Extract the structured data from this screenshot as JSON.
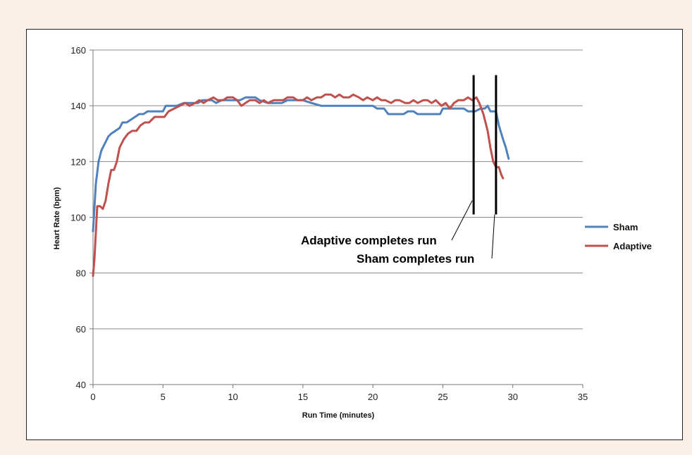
{
  "chart_data": {
    "type": "line",
    "title": "",
    "xlabel": "Run Time (minutes)",
    "ylabel": "Heart Rate (bpm)",
    "xlim": [
      0,
      35
    ],
    "ylim": [
      40,
      160
    ],
    "x_ticks": [
      0,
      5,
      10,
      15,
      20,
      25,
      30,
      35
    ],
    "y_ticks": [
      40,
      60,
      80,
      100,
      120,
      140,
      160
    ],
    "grid": "horizontal",
    "legend_position": "right",
    "series": [
      {
        "name": "Sham",
        "color": "#4f81bd",
        "points": [
          [
            0,
            95
          ],
          [
            0.2,
            112
          ],
          [
            0.4,
            120
          ],
          [
            0.6,
            124
          ],
          [
            0.9,
            127
          ],
          [
            1.1,
            129
          ],
          [
            1.3,
            130
          ],
          [
            1.6,
            131
          ],
          [
            1.9,
            132
          ],
          [
            2.1,
            134
          ],
          [
            2.4,
            134
          ],
          [
            2.7,
            135
          ],
          [
            3.0,
            136
          ],
          [
            3.3,
            137
          ],
          [
            3.6,
            137
          ],
          [
            3.9,
            138
          ],
          [
            4.5,
            138
          ],
          [
            5.0,
            138
          ],
          [
            5.2,
            140
          ],
          [
            6.0,
            140
          ],
          [
            6.5,
            141
          ],
          [
            7.5,
            141
          ],
          [
            7.8,
            142
          ],
          [
            8.5,
            142
          ],
          [
            8.8,
            141
          ],
          [
            9.2,
            142
          ],
          [
            10.5,
            142
          ],
          [
            10.9,
            143
          ],
          [
            11.6,
            143
          ],
          [
            11.9,
            142
          ],
          [
            12.5,
            141
          ],
          [
            13.5,
            141
          ],
          [
            13.9,
            142
          ],
          [
            15.0,
            142
          ],
          [
            15.6,
            141
          ],
          [
            16.3,
            140
          ],
          [
            17.5,
            140
          ],
          [
            19.0,
            140
          ],
          [
            20.0,
            140
          ],
          [
            20.3,
            139
          ],
          [
            20.8,
            139
          ],
          [
            21.1,
            137
          ],
          [
            22.0,
            137
          ],
          [
            22.2,
            137
          ],
          [
            22.5,
            138
          ],
          [
            22.9,
            138
          ],
          [
            23.2,
            137
          ],
          [
            24.5,
            137
          ],
          [
            24.8,
            137
          ],
          [
            25.0,
            139
          ],
          [
            26.5,
            139
          ],
          [
            26.8,
            138
          ],
          [
            27.3,
            138
          ],
          [
            27.7,
            139
          ],
          [
            28.0,
            139
          ],
          [
            28.2,
            140
          ],
          [
            28.4,
            138
          ],
          [
            28.8,
            138
          ],
          [
            29.0,
            133
          ],
          [
            29.3,
            128
          ],
          [
            29.5,
            125
          ],
          [
            29.7,
            121
          ]
        ]
      },
      {
        "name": "Adaptive",
        "color": "#c0504d",
        "points": [
          [
            0,
            79
          ],
          [
            0.1,
            85
          ],
          [
            0.3,
            104
          ],
          [
            0.5,
            104
          ],
          [
            0.7,
            103
          ],
          [
            0.9,
            106
          ],
          [
            1.1,
            112
          ],
          [
            1.3,
            117
          ],
          [
            1.5,
            117
          ],
          [
            1.7,
            120
          ],
          [
            1.9,
            125
          ],
          [
            2.2,
            128
          ],
          [
            2.5,
            130
          ],
          [
            2.8,
            131
          ],
          [
            3.1,
            131
          ],
          [
            3.4,
            133
          ],
          [
            3.7,
            134
          ],
          [
            4.0,
            134
          ],
          [
            4.4,
            136
          ],
          [
            4.8,
            136
          ],
          [
            5.1,
            136
          ],
          [
            5.4,
            138
          ],
          [
            5.8,
            139
          ],
          [
            6.2,
            140
          ],
          [
            6.6,
            141
          ],
          [
            6.9,
            140
          ],
          [
            7.3,
            141
          ],
          [
            7.6,
            142
          ],
          [
            7.9,
            141
          ],
          [
            8.2,
            142
          ],
          [
            8.6,
            143
          ],
          [
            8.9,
            142
          ],
          [
            9.3,
            142
          ],
          [
            9.6,
            143
          ],
          [
            10.0,
            143
          ],
          [
            10.3,
            142
          ],
          [
            10.6,
            140
          ],
          [
            10.9,
            141
          ],
          [
            11.2,
            142
          ],
          [
            11.6,
            142
          ],
          [
            11.9,
            141
          ],
          [
            12.2,
            142
          ],
          [
            12.5,
            141
          ],
          [
            12.9,
            142
          ],
          [
            13.3,
            142
          ],
          [
            13.6,
            142
          ],
          [
            13.9,
            143
          ],
          [
            14.3,
            143
          ],
          [
            14.6,
            142
          ],
          [
            15.0,
            142
          ],
          [
            15.3,
            143
          ],
          [
            15.6,
            142
          ],
          [
            16.0,
            143
          ],
          [
            16.3,
            143
          ],
          [
            16.6,
            144
          ],
          [
            17.0,
            144
          ],
          [
            17.3,
            143
          ],
          [
            17.6,
            144
          ],
          [
            17.9,
            143
          ],
          [
            18.3,
            143
          ],
          [
            18.6,
            144
          ],
          [
            19.0,
            143
          ],
          [
            19.3,
            142
          ],
          [
            19.6,
            143
          ],
          [
            20.0,
            142
          ],
          [
            20.3,
            143
          ],
          [
            20.6,
            142
          ],
          [
            20.9,
            142
          ],
          [
            21.3,
            141
          ],
          [
            21.6,
            142
          ],
          [
            21.9,
            142
          ],
          [
            22.3,
            141
          ],
          [
            22.6,
            141
          ],
          [
            22.9,
            142
          ],
          [
            23.2,
            141
          ],
          [
            23.6,
            142
          ],
          [
            23.9,
            142
          ],
          [
            24.2,
            141
          ],
          [
            24.5,
            142
          ],
          [
            24.9,
            140
          ],
          [
            25.2,
            141
          ],
          [
            25.5,
            139
          ],
          [
            25.8,
            141
          ],
          [
            26.1,
            142
          ],
          [
            26.5,
            142
          ],
          [
            26.8,
            143
          ],
          [
            27.1,
            142
          ],
          [
            27.4,
            143
          ],
          [
            27.6,
            141
          ],
          [
            27.9,
            137
          ],
          [
            28.2,
            131
          ],
          [
            28.4,
            125
          ],
          [
            28.6,
            120
          ],
          [
            28.8,
            118
          ],
          [
            29.0,
            118
          ],
          [
            29.2,
            115
          ],
          [
            29.3,
            114
          ]
        ]
      }
    ],
    "markers": [
      {
        "x": 27.2,
        "y_from": 101,
        "y_to": 151
      },
      {
        "x": 28.8,
        "y_from": 101,
        "y_to": 151
      }
    ],
    "annotations": [
      {
        "text": "Adaptive completes run",
        "target_x": 27.2,
        "target_y": 106
      },
      {
        "text": "Sham completes run",
        "target_x": 28.8,
        "target_y": 101
      }
    ]
  }
}
